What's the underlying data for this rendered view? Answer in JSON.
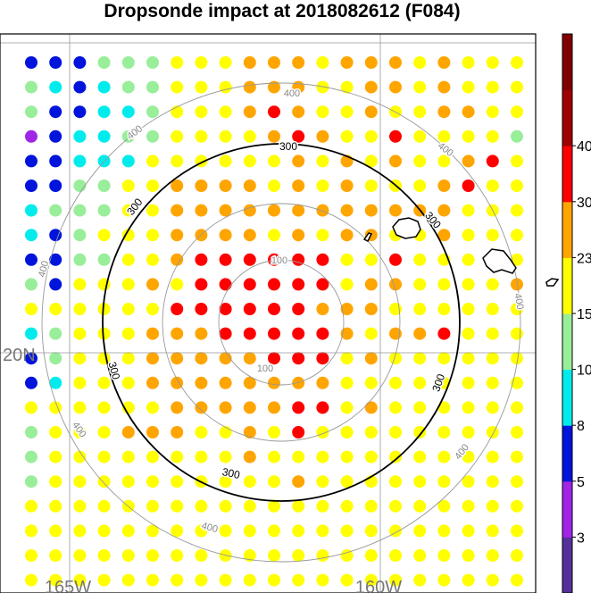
{
  "title": "Dropsonde impact at 2018082612 (F084)",
  "axes": {
    "lon_labels": [
      "165W",
      "160W"
    ],
    "lat_labels": [
      "20N"
    ]
  },
  "range_rings": [
    {
      "label": "100",
      "bold": false
    },
    {
      "label": "200",
      "bold": false
    },
    {
      "label": "300",
      "bold": true
    },
    {
      "label": "400",
      "bold": false
    }
  ],
  "colorbar": {
    "labels": [
      "3",
      "5",
      "8",
      "10",
      "15",
      "23",
      "30",
      "40"
    ],
    "colors": [
      "#55309a",
      "#a025e6",
      "#0014dc",
      "#00ecec",
      "#99ee99",
      "#ffff00",
      "#ffa500",
      "#ff0000",
      "#a00000",
      "#800000"
    ]
  },
  "chart_data": {
    "type": "heatmap",
    "title": "Dropsonde impact at 2018082612 (F084)",
    "color_scale_bounds": [
      3,
      5,
      8,
      10,
      15,
      23,
      30,
      40
    ],
    "category_codes": {
      "P": "3-5",
      "B": "5-8",
      "C": "8-10",
      "G": "10-15",
      "Y": "15-23",
      "O": "23-30",
      "R": "30-40"
    },
    "grid_rows": [
      "BBBGGGYYYOOOYOOOYOYYY",
      "GCBCGGYYYOOOYYOOYOYYY",
      "GBBCCGYYYOROYYOYYOOYY",
      "PBCCGGYYYYOROYYRYYYYG",
      "BBCCCYYYYYYOYOYOYYORY",
      "BBGGYYOOOOYOYOYYYORYY",
      "CGGGYYOOOOOOOOOOOOYYY",
      "CBGYYYOOOOYOYOOYYOYYY",
      "BBGGYYORRRRRRYYRYYYYY",
      "GBYYYOYRRRRRRYOOYYYYO",
      "YYYYYYRRRRRROOOYYYYYY",
      "CGYYYOOORRRRROYOORYYY",
      "BGYYYOOOOORRRYOYYYYYY",
      "BCYYYOOOOOOOOYYYYYYYY",
      "YYYYYYOOOOORRYOYYYYYY",
      "GYYYOOOYYOYRYYYYYYYYY",
      "GYYYYYYYYOYYYYYYYYYYY",
      "GYYYYYYYYYYOYYYYYYYYY",
      "YYYYYYYYYYYYYYYYYYYYY",
      "YYYYYYYYYYYYYYYYYYYYY",
      "YYYYYYYYYYYYYYYYYYYYY",
      "YYYYYYYYYYYYYYYYYYYYY",
      "YYYYYYYYYYYYYYYYYYGGY"
    ]
  }
}
